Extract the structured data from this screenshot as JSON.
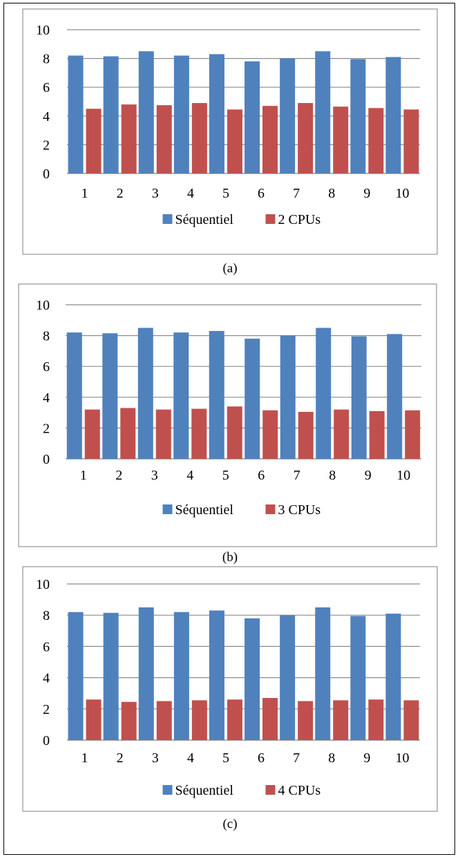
{
  "chart_data": [
    {
      "type": "bar",
      "caption": "(a)",
      "categories": [
        "1",
        "2",
        "3",
        "4",
        "5",
        "6",
        "7",
        "8",
        "9",
        "10"
      ],
      "series": [
        {
          "name": "Séquentiel",
          "color": "#4F81BD",
          "values": [
            8.2,
            8.15,
            8.5,
            8.2,
            8.3,
            7.8,
            8.0,
            8.5,
            7.95,
            8.1
          ]
        },
        {
          "name": "2 CPUs",
          "color": "#C0504D",
          "values": [
            4.5,
            4.8,
            4.75,
            4.9,
            4.45,
            4.7,
            4.9,
            4.65,
            4.55,
            4.45
          ]
        }
      ],
      "ylim": [
        0,
        10
      ],
      "yticks": [
        "0",
        "2",
        "4",
        "6",
        "8",
        "10"
      ],
      "grid": true,
      "legend": "bottom"
    },
    {
      "type": "bar",
      "caption": "(b)",
      "categories": [
        "1",
        "2",
        "3",
        "4",
        "5",
        "6",
        "7",
        "8",
        "9",
        "10"
      ],
      "series": [
        {
          "name": "Séquentiel",
          "color": "#4F81BD",
          "values": [
            8.2,
            8.15,
            8.5,
            8.2,
            8.3,
            7.8,
            8.0,
            8.5,
            7.95,
            8.1
          ]
        },
        {
          "name": "3 CPUs",
          "color": "#C0504D",
          "values": [
            3.2,
            3.3,
            3.2,
            3.25,
            3.4,
            3.15,
            3.05,
            3.2,
            3.1,
            3.15
          ]
        }
      ],
      "ylim": [
        0,
        10
      ],
      "yticks": [
        "0",
        "2",
        "4",
        "6",
        "8",
        "10"
      ],
      "grid": true,
      "legend": "bottom"
    },
    {
      "type": "bar",
      "caption": "(c)",
      "categories": [
        "1",
        "2",
        "3",
        "4",
        "5",
        "6",
        "7",
        "8",
        "9",
        "10"
      ],
      "series": [
        {
          "name": "Séquentiel",
          "color": "#4F81BD",
          "values": [
            8.2,
            8.15,
            8.5,
            8.2,
            8.3,
            7.8,
            8.0,
            8.5,
            7.95,
            8.1
          ]
        },
        {
          "name": "4 CPUs",
          "color": "#C0504D",
          "values": [
            2.6,
            2.45,
            2.5,
            2.55,
            2.6,
            2.7,
            2.5,
            2.55,
            2.6,
            2.55
          ]
        }
      ],
      "ylim": [
        0,
        10
      ],
      "yticks": [
        "0",
        "2",
        "4",
        "6",
        "8",
        "10"
      ],
      "grid": true,
      "legend": "bottom"
    }
  ]
}
